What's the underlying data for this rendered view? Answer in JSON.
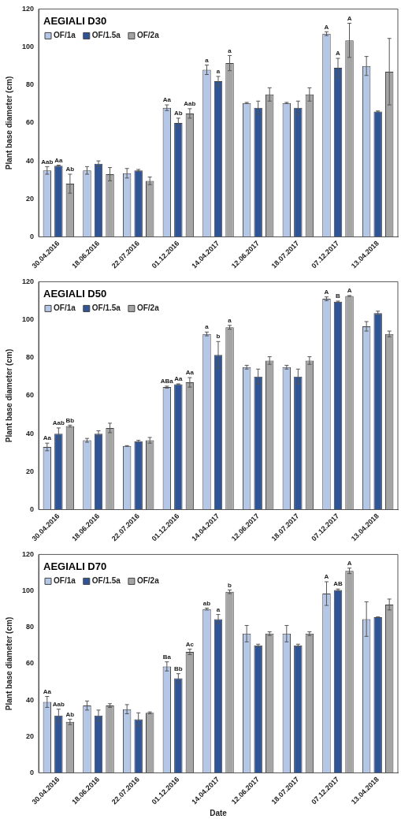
{
  "chart_data": [
    {
      "type": "bar",
      "title": "AEGIALI D30",
      "ylabel": "Plant base diameter (cm)",
      "categories": [
        "30.04.2016",
        "18.06.2016",
        "22.07.2016",
        "01.12.2016",
        "14.04.2017",
        "12.06.2017",
        "18.07.2017",
        "07.12.2017",
        "13.04.2018"
      ],
      "ylim": [
        0,
        120
      ],
      "yticks": [
        0,
        20,
        40,
        60,
        80,
        100,
        120
      ],
      "grid": false,
      "legend": "top left",
      "series": [
        {
          "name": "OF/1a",
          "color": "#b4c7e7",
          "values": [
            35,
            35,
            33.5,
            68,
            88,
            70.5,
            70.5,
            107,
            90
          ],
          "errors": [
            2,
            2,
            2.5,
            1.5,
            2.5,
            0.3,
            0.3,
            1,
            5
          ],
          "value_labels": [
            "Aab",
            null,
            null,
            "Aa",
            "a",
            null,
            null,
            "A",
            null
          ]
        },
        {
          "name": "OF/1.5a",
          "color": "#2f5597",
          "values": [
            37.5,
            38.5,
            35,
            60,
            82,
            68,
            68,
            89,
            66
          ],
          "errors": [
            0.3,
            1.5,
            0.5,
            2.5,
            2.5,
            3.5,
            3.5,
            5,
            0.3
          ],
          "value_labels": [
            "Aa",
            null,
            null,
            "Ab",
            "a",
            null,
            null,
            "A",
            null
          ]
        },
        {
          "name": "OF/2a",
          "color": "#a5a5a5",
          "values": [
            28,
            33,
            29.5,
            65,
            91.5,
            75,
            75,
            103.5,
            87
          ],
          "errors": [
            5,
            3.5,
            2,
            2.5,
            4,
            3.5,
            3.5,
            9,
            17.5
          ],
          "value_labels": [
            "Ab",
            null,
            null,
            "Aab",
            "a",
            null,
            null,
            "A",
            null
          ]
        }
      ]
    },
    {
      "type": "bar",
      "title": "AEGIALI D50",
      "ylabel": "Plant base diameter (cm)",
      "categories": [
        "30.04.2016",
        "18.06.2016",
        "22.07.2016",
        "01.12.2016",
        "14.04.2017",
        "12.06.2017",
        "18.07.2017",
        "07.12.2017",
        "13.04.2018"
      ],
      "ylim": [
        0,
        120
      ],
      "yticks": [
        0,
        20,
        40,
        60,
        80,
        100,
        120
      ],
      "grid": false,
      "legend": "top left",
      "series": [
        {
          "name": "OF/1a",
          "color": "#b4c7e7",
          "values": [
            33,
            36.5,
            33.5,
            64.5,
            92.5,
            75,
            75,
            111,
            96.5
          ],
          "errors": [
            2,
            1,
            0.2,
            0.5,
            1,
            1,
            1,
            1,
            2.5
          ],
          "value_labels": [
            "Aa",
            null,
            null,
            "ABa",
            "a",
            null,
            null,
            "A",
            null
          ]
        },
        {
          "name": "OF/1.5a",
          "color": "#2f5597",
          "values": [
            40,
            40,
            36,
            66,
            81.5,
            70,
            70,
            109.5,
            103.5
          ],
          "errors": [
            3,
            1.5,
            0.5,
            0.2,
            7,
            4,
            4,
            0.3,
            1
          ],
          "value_labels": [
            "Aab",
            null,
            null,
            "Aa",
            "b",
            null,
            null,
            "B",
            null
          ]
        },
        {
          "name": "OF/2a",
          "color": "#a5a5a5",
          "values": [
            44,
            43,
            36.5,
            67,
            96,
            78.5,
            78.5,
            112.5,
            92.5
          ],
          "errors": [
            0.5,
            2.5,
            1.5,
            2.5,
            1,
            2,
            2,
            0.2,
            1.5
          ],
          "value_labels": [
            "Bb",
            null,
            null,
            "Aa",
            "a",
            null,
            null,
            "A",
            null
          ]
        }
      ]
    },
    {
      "type": "bar",
      "title": "AEGIALI D70",
      "xlabel": "Date",
      "ylabel": "Plant base diameter (cm)",
      "categories": [
        "30.04.2016",
        "18.06.2016",
        "22.07.2016",
        "01.12.2016",
        "14.04.2017",
        "12.06.2017",
        "18.07.2017",
        "07.12.2017",
        "13.04.2018"
      ],
      "ylim": [
        0,
        120
      ],
      "yticks": [
        0,
        20,
        40,
        60,
        80,
        100,
        120
      ],
      "grid": false,
      "legend": "top left",
      "series": [
        {
          "name": "OF/1a",
          "color": "#b4c7e7",
          "values": [
            39,
            37,
            35,
            58.5,
            90,
            76.5,
            76.5,
            98.5,
            84.5
          ],
          "errors": [
            3,
            2.5,
            2.5,
            2.5,
            0.5,
            4.5,
            4.5,
            6.5,
            9.5
          ],
          "value_labels": [
            "Aa",
            null,
            null,
            "Ba",
            "ab",
            null,
            null,
            "A",
            null
          ]
        },
        {
          "name": "OF/1.5a",
          "color": "#2f5597",
          "values": [
            31.5,
            31.5,
            29.5,
            52,
            84.5,
            70,
            70,
            100.5,
            85.5
          ],
          "errors": [
            3.5,
            3,
            3.5,
            2.5,
            2.5,
            0.7,
            0.7,
            0.5,
            0.2
          ],
          "value_labels": [
            "Aab",
            null,
            null,
            "Bb",
            "a",
            null,
            null,
            "AB",
            null
          ]
        },
        {
          "name": "OF/2a",
          "color": "#a5a5a5",
          "values": [
            28,
            37,
            33,
            66.5,
            99.5,
            76.5,
            76.5,
            111,
            92.5
          ],
          "errors": [
            1.5,
            1,
            0.5,
            1.5,
            1,
            1,
            1,
            1.5,
            3
          ],
          "value_labels": [
            "Ab",
            null,
            null,
            "Ac",
            "b",
            null,
            null,
            "A",
            null
          ]
        }
      ]
    }
  ]
}
